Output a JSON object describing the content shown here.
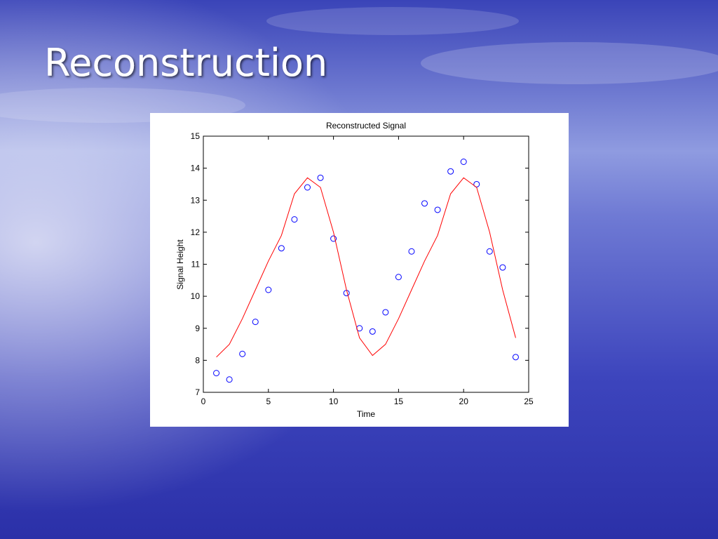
{
  "slide": {
    "title": "Reconstruction"
  },
  "chart_data": {
    "type": "line",
    "title": "Reconstructed Signal",
    "x_label": "Time",
    "y_label": "Signal Height",
    "x": [
      1,
      2,
      3,
      4,
      5,
      6,
      7,
      8,
      9,
      10,
      11,
      12,
      13,
      14,
      15,
      16,
      17,
      18,
      19,
      20,
      21,
      22,
      23,
      24
    ],
    "series": [
      {
        "mode": "markers",
        "color": "#0000ff",
        "values": [
          7.6,
          7.4,
          8.2,
          9.2,
          10.2,
          11.5,
          12.4,
          13.4,
          13.7,
          11.8,
          10.1,
          9.0,
          8.9,
          9.5,
          10.6,
          11.4,
          12.9,
          12.7,
          13.9,
          14.2,
          13.5,
          11.4,
          10.9,
          8.1
        ]
      },
      {
        "mode": "lines",
        "color": "#ff0000",
        "values": [
          8.1,
          8.5,
          9.3,
          10.2,
          11.1,
          11.9,
          13.2,
          13.7,
          13.4,
          12.0,
          10.2,
          8.7,
          8.15,
          8.5,
          9.3,
          10.2,
          11.1,
          11.9,
          13.2,
          13.7,
          13.4,
          12.0,
          10.2,
          8.7
        ]
      }
    ],
    "xlim": [
      0,
      25
    ],
    "xticks": [
      0,
      5,
      10,
      15,
      20,
      25
    ],
    "ylim": [
      7,
      15
    ],
    "yticks": [
      7,
      8,
      9,
      10,
      11,
      12,
      13,
      14,
      15
    ],
    "box": true
  }
}
